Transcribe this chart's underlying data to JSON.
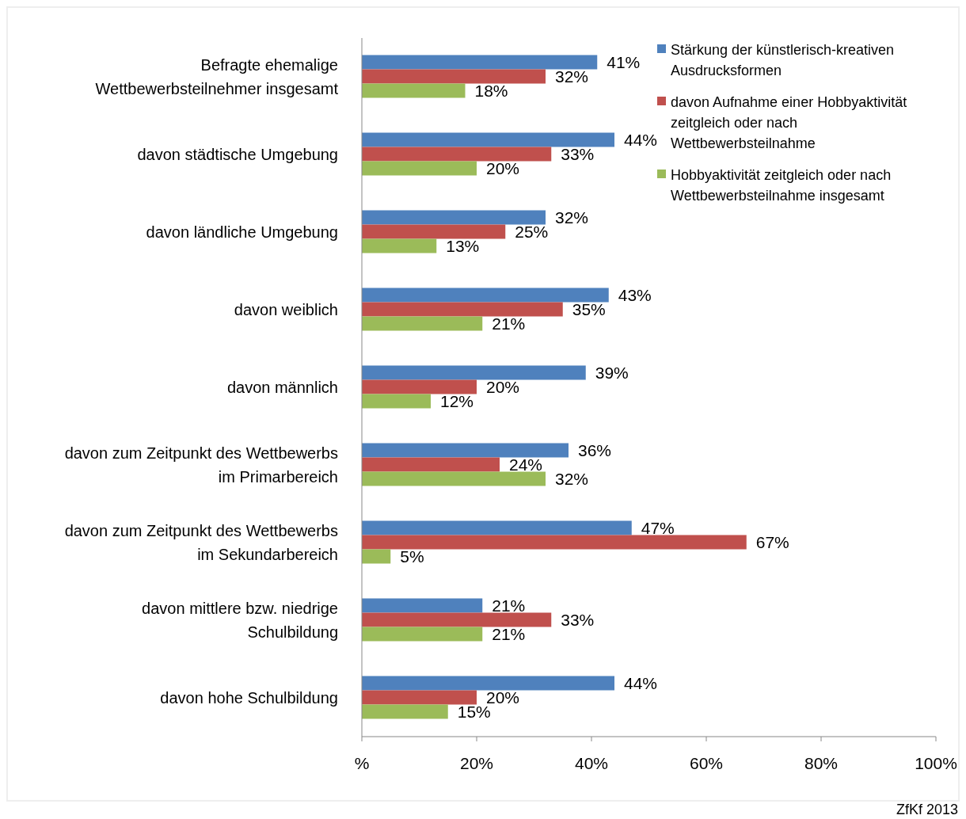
{
  "chart_data": {
    "type": "bar",
    "orientation": "horizontal",
    "categories": [
      "Befragte ehemalige Wettbewerbsteilnehmer insgesamt",
      "davon städtische Umgebung",
      "davon ländliche Umgebung",
      "davon weiblich",
      "davon männlich",
      "davon zum Zeitpunkt des Wettbewerbs im Primarbereich",
      "davon zum Zeitpunkt des Wettbewerbs im Sekundarbereich",
      "davon mittlere bzw. niedrige Schulbildung",
      "davon hohe Schulbildung"
    ],
    "series": [
      {
        "name": "Stärkung der künstlerisch-kreativen Ausdrucksformen",
        "color": "#4f81bd",
        "values": [
          41,
          44,
          32,
          43,
          39,
          36,
          47,
          21,
          44
        ],
        "value_labels": [
          "41%",
          "44%",
          "32%",
          "43%",
          "39%",
          "36%",
          "47%",
          "21%",
          "44%"
        ]
      },
      {
        "name": "davon Aufnahme einer Hobbyaktivität zeitgleich oder nach Wettbewerbsteilnahme",
        "color": "#c0504d",
        "values": [
          32,
          33,
          25,
          35,
          20,
          24,
          67,
          33,
          20
        ],
        "value_labels": [
          "32%",
          "33%",
          "25%",
          "35%",
          "20%",
          "24%",
          "67%",
          "33%",
          "20%"
        ]
      },
      {
        "name": "Hobbyaktivität zeitgleich oder nach Wettbewerbsteilnahme insgesamt",
        "color": "#9bbb59",
        "values": [
          18,
          20,
          13,
          21,
          12,
          32,
          5,
          21,
          15
        ],
        "value_labels": [
          "18%",
          "20%",
          "13%",
          "21%",
          "12%",
          "32%",
          "5%",
          "21%",
          "15%"
        ]
      }
    ],
    "xlim": [
      0,
      100
    ],
    "xticks": [
      {
        "value": 0,
        "label": "%"
      },
      {
        "value": 20,
        "label": "20%"
      },
      {
        "value": 40,
        "label": "40%"
      },
      {
        "value": 60,
        "label": "60%"
      },
      {
        "value": 80,
        "label": "80%"
      },
      {
        "value": 100,
        "label": "100%"
      }
    ],
    "grid": false,
    "legend": "top right",
    "annotations": [
      "ZfKf 2013"
    ]
  }
}
